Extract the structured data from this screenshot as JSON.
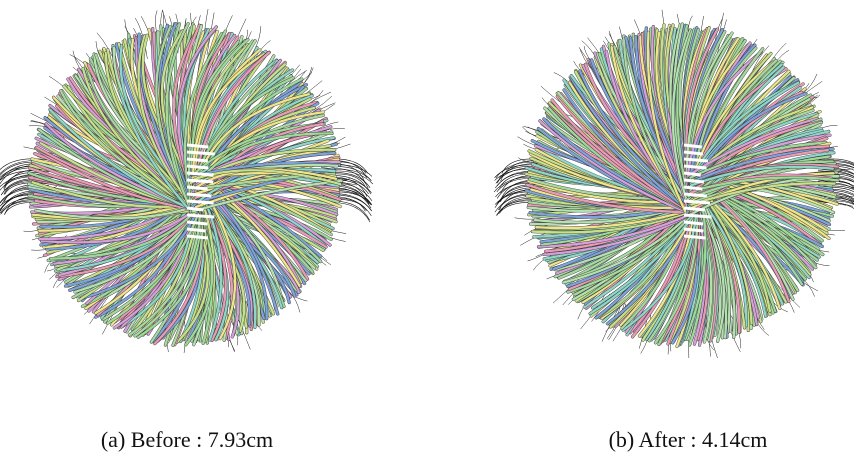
{
  "subfigures": [
    {
      "caption": "(a) Before : 7.93cm"
    },
    {
      "caption": "(b) After : 4.14cm"
    }
  ]
}
